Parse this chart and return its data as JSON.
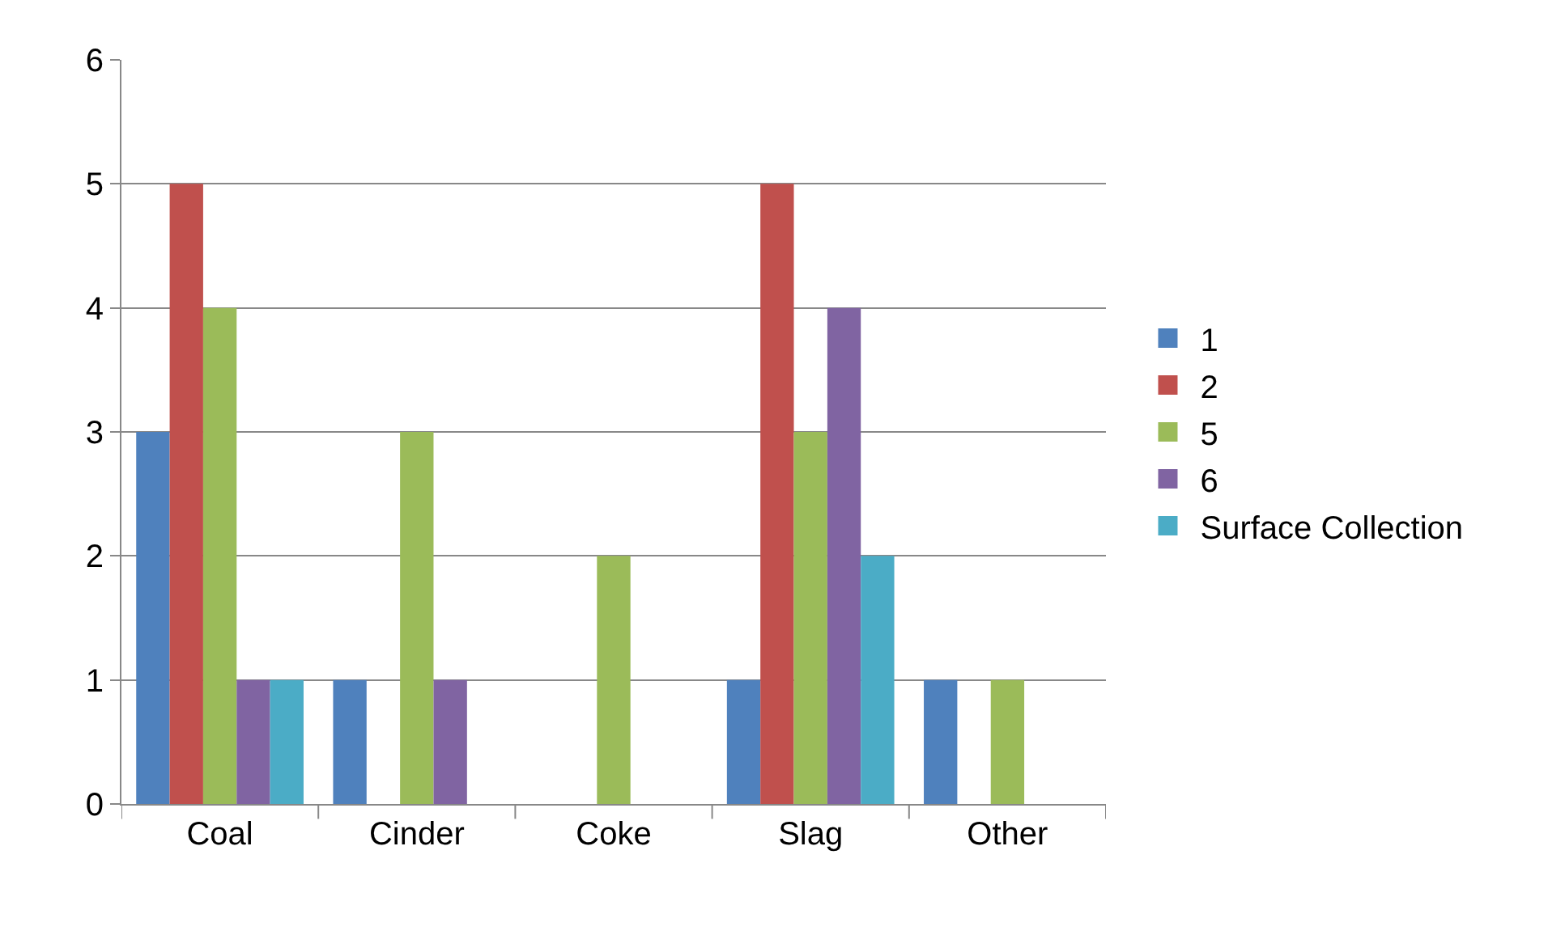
{
  "chart_data": {
    "type": "bar",
    "categories": [
      "Coal",
      "Cinder",
      "Coke",
      "Slag",
      "Other"
    ],
    "series": [
      {
        "name": "1",
        "color": "#4f81bd",
        "values": [
          3,
          1,
          0,
          1,
          1
        ]
      },
      {
        "name": "2",
        "color": "#c0504d",
        "values": [
          5,
          0,
          0,
          5,
          0
        ]
      },
      {
        "name": "5",
        "color": "#9bbb59",
        "values": [
          4,
          3,
          2,
          3,
          1
        ]
      },
      {
        "name": "6",
        "color": "#8064a2",
        "values": [
          1,
          1,
          0,
          4,
          0
        ]
      },
      {
        "name": "Surface Collection",
        "color": "#4bacc6",
        "values": [
          1,
          0,
          0,
          2,
          0
        ]
      }
    ],
    "ylim": [
      0,
      6
    ],
    "yticks": [
      0,
      1,
      2,
      3,
      4,
      5,
      6
    ],
    "grid": "y",
    "legend": "right"
  }
}
